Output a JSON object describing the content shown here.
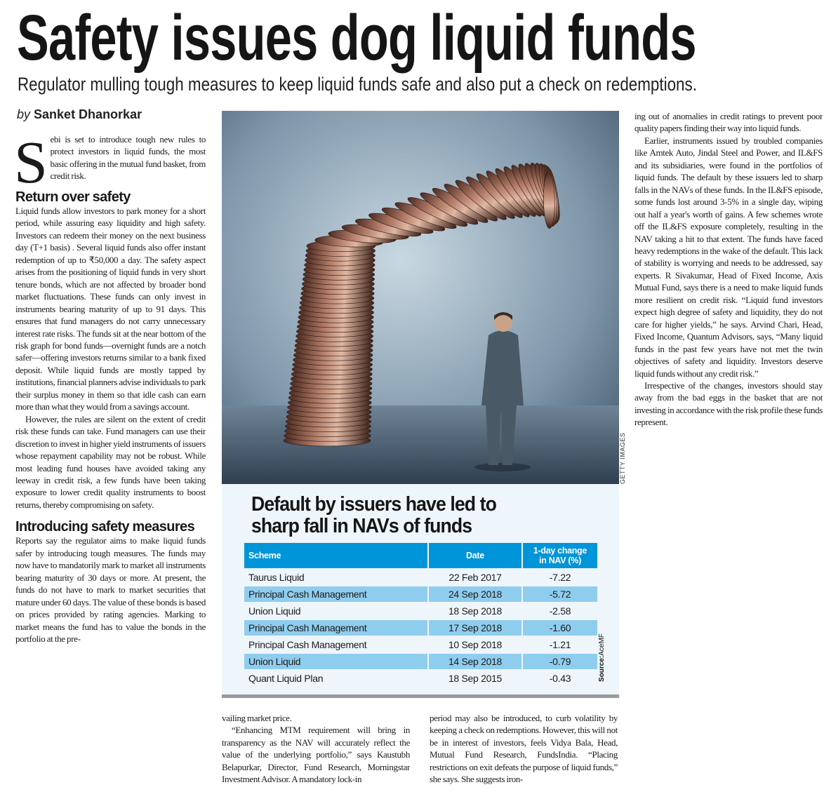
{
  "headline": "Safety issues dog liquid funds",
  "subheadline": "Regulator mulling tough measures to keep liquid funds safe and also put a check on redemptions.",
  "byline": {
    "prefix": "by",
    "author": "Sanket Dhanorkar"
  },
  "photo": {
    "credit": "GETTY IMAGES",
    "description_icon": "coin-stack-man-photo"
  },
  "left_column": {
    "dropcap": "S",
    "intro": "ebi is set to introduce tough new rules to protect investors in liquid funds, the most basic offering in the mutual fund basket, from credit risk.",
    "heading1": "Return over safety",
    "p1": "Liquid funds allow investors to park money for a short period, while assuring easy liquidity and high safety. Investors can redeem their money on the next business day (T+1 basis) . Several liquid funds also offer instant redemption of up to ₹50,000 a day. The safety aspect arises from the positioning of liquid funds in very short tenure bonds, which are not affected by broader bond market fluctuations. These funds can only invest in instruments bearing maturity of up to 91 days. This ensures that fund managers do not carry unnecessary interest rate risks. The funds sit at the near bottom of the risk graph for bond funds—overnight funds are a notch safer—offering investors returns similar to a bank fixed deposit. While liquid funds are mostly tapped by institutions, financial planners advise individuals to park their surplus money in them so that idle cash can earn more than what they would from a savings account.",
    "p2": "However, the rules are silent on the extent of credit risk these funds can take. Fund managers can use their discretion to invest in higher yield instruments of issuers whose repayment capability may not be robust. While most leading fund houses have avoided taking any leeway in credit risk, a few funds have been taking exposure to lower credit quality instruments to boost returns, thereby compromising on safety.",
    "heading2": "Introducing safety measures",
    "p3": "Reports say the regulator aims to make liquid funds safer by introducing tough measures. The funds may now have to mandatorily mark to market all instruments bearing maturity of 30 days or more. At present, the funds do not have to mark to market securities that mature under 60 days. The value of these bonds is based on prices provided by rating agencies. Marking to market means the fund has to value the bonds in the portfolio at the pre-"
  },
  "middle_column_1": {
    "p1": "vailing market price.",
    "p2": "“Enhancing MTM requirement will bring in transparency as the NAV will accurately reflect the value of the underlying portfolio,” says Kaustubh Belapurkar, Director, Fund Research, Morningstar Investment Advisor. A mandatory lock-in"
  },
  "middle_column_2": {
    "p1": "period may also be introduced, to curb volatility by keeping a check on redemptions. However, this will not be in interest of investors, feels Vidya Bala, Head, Mutual Fund Research, FundsIndia. “Placing restrictions on exit defeats the purpose of liquid funds,” she says. She suggests iron-"
  },
  "right_column": {
    "p1": "ing out of anomalies in credit ratings to prevent poor quality papers finding their way into liquid funds.",
    "p2": "Earlier, instruments issued by troubled companies like Amtek Auto, Jindal Steel and Power, and IL&FS and its subsidiaries, were found in the portfolios of liquid funds. The default by these issuers led to sharp falls in the NAVs of these funds. In the IL&FS episode, some funds lost around 3-5% in a single day, wiping out half a year's worth of gains. A few schemes wrote off the IL&FS exposure completely, resulting in the NAV taking a hit to that extent. The funds have faced heavy redemptions in the wake of the default. This lack of stability is worrying and needs to be addressed, say experts. R Sivakumar, Head of Fixed Income, Axis Mutual Fund, says there is a need to make liquid funds more resilient on credit risk. “Liquid fund investors expect high degree of safety and liquidity, they do not care for higher yields,” he says. Arvind Chari, Head, Fixed Income, Quantum Advisors, says, “Many liquid funds in the past few years have not met the twin objectives of safety and liquidity. Investors deserve liquid funds without any credit risk.”",
    "p3": "Irrespective of the changes, investors should stay away from the bad eggs in the basket that are not investing in accordance with the risk profile these funds represent."
  },
  "table": {
    "title_line1": "Default by issuers have led to",
    "title_line2": "sharp fall in NAVs of funds",
    "headers": [
      "Scheme",
      "Date",
      "1-day change",
      "in NAV (%)"
    ],
    "rows": [
      {
        "scheme": "Taurus Liquid",
        "date": "22 Feb 2017",
        "change": "-7.22"
      },
      {
        "scheme": "Principal Cash Management",
        "date": "24 Sep 2018",
        "change": "-5.72"
      },
      {
        "scheme": "Union Liquid",
        "date": "18 Sep 2018",
        "change": "-2.58"
      },
      {
        "scheme": "Principal Cash Management",
        "date": "17 Sep 2018",
        "change": "-1.60"
      },
      {
        "scheme": "Principal Cash Management",
        "date": "10 Sep 2018",
        "change": "-1.21"
      },
      {
        "scheme": "Union Liquid",
        "date": "14 Sep 2018",
        "change": "-0.79"
      },
      {
        "scheme": "Quant Liquid Plan",
        "date": "18 Sep 2015",
        "change": "-0.43"
      }
    ],
    "source_label": "Source:",
    "source": "AceMF",
    "colors": {
      "header": "#0094d8",
      "alt_row": "#8fcdee",
      "panel": "#eef6fb"
    }
  }
}
